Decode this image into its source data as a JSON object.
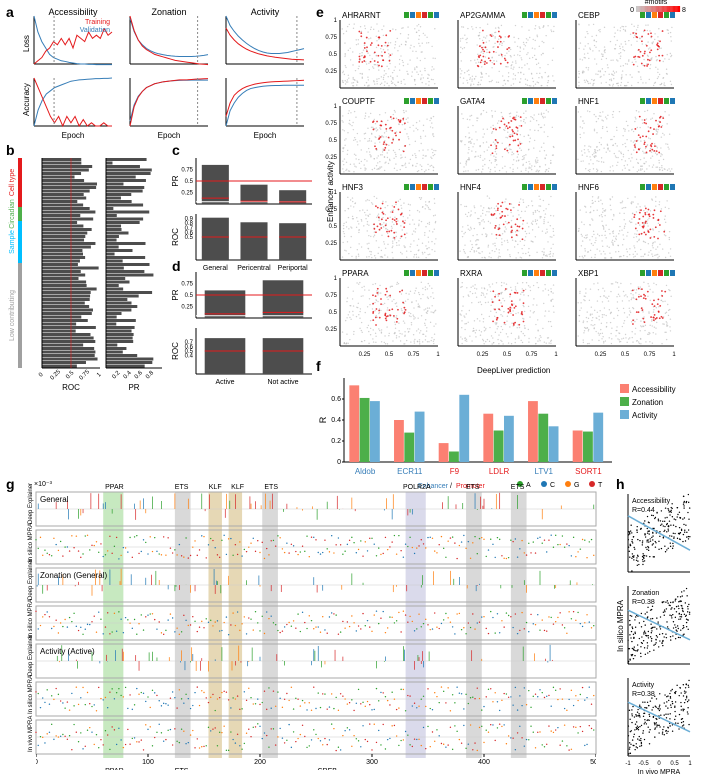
{
  "panel_labels": {
    "a": "a",
    "b": "b",
    "c": "c",
    "d": "d",
    "e": "e",
    "f": "f",
    "g": "g",
    "h": "h"
  },
  "a": {
    "titles": [
      "Accessibility",
      "Zonation",
      "Activity"
    ],
    "legend": {
      "training": "Training",
      "validation": "Validation"
    },
    "training_color": "#e41a1c",
    "validation_color": "#377eb8",
    "y_top": "Loss",
    "y_bot": "Accuracy",
    "x": "Epoch",
    "plots": [
      {
        "loss_epochs": [
          0,
          35
        ],
        "loss_yrange": [
          0.105,
          0.12
        ],
        "vline": 9,
        "loss_train": [
          0.105,
          0.106,
          0.107,
          0.109,
          0.11,
          0.112,
          0.111,
          0.113,
          0.111,
          0.113,
          0.11,
          0.114,
          0.113,
          0.112,
          0.115,
          0.113,
          0.114,
          0.113,
          0.116,
          0.114,
          0.115
        ],
        "loss_val": [
          0.12,
          0.115,
          0.112,
          0.11,
          0.108,
          0.107,
          0.1065,
          0.106,
          0.1058,
          0.1055,
          0.1053,
          0.1051,
          0.105,
          0.105,
          0.1049,
          0.1049,
          0.1048,
          0.1048,
          0.1048,
          0.1048,
          0.1048
        ],
        "acc_yrange": [
          0.9685,
          0.97
        ],
        "acc_vline": 9,
        "acc_train": [
          0.97,
          0.9697,
          0.9694,
          0.9691,
          0.9688,
          0.9686,
          0.9688,
          0.9685,
          0.9688,
          0.9686,
          0.9688,
          0.9685,
          0.9687,
          0.9685,
          0.9686,
          0.9685,
          0.9685,
          0.9686,
          0.9685,
          0.9685
        ],
        "acc_val": [
          0.9685,
          0.969,
          0.9693,
          0.9695,
          0.9696,
          0.9697,
          0.96975,
          0.9698,
          0.96985,
          0.9699,
          0.96992,
          0.96994,
          0.96995,
          0.96996,
          0.96997,
          0.96998,
          0.96998,
          0.96999,
          0.96999,
          0.97
        ]
      },
      {
        "loss_epochs": [
          0,
          75
        ],
        "loss_yrange": [
          0.12,
          0.16
        ],
        "vline": 65,
        "loss_train": [
          0.16,
          0.148,
          0.14,
          0.135,
          0.132,
          0.13,
          0.128,
          0.127,
          0.126,
          0.125,
          0.124,
          0.123,
          0.1225,
          0.122,
          0.1215,
          0.121,
          0.1205,
          0.12,
          0.1198,
          0.1195
        ],
        "loss_val": [
          0.158,
          0.147,
          0.14,
          0.136,
          0.133,
          0.131,
          0.1295,
          0.1285,
          0.1278,
          0.1272,
          0.1268,
          0.1265,
          0.1263,
          0.1262,
          0.1262,
          0.1263,
          0.1265,
          0.1268,
          0.1272,
          0.1278
        ],
        "acc_yrange": [
          0.65,
          0.7
        ],
        "acc_vline": 65,
        "acc_train": [
          0.65,
          0.67,
          0.68,
          0.686,
          0.69,
          0.692,
          0.694,
          0.695,
          0.696,
          0.6965,
          0.697,
          0.6975,
          0.698,
          0.698,
          0.6982,
          0.6985,
          0.6988,
          0.699,
          0.6992,
          0.6993
        ],
        "acc_val": [
          0.655,
          0.672,
          0.681,
          0.686,
          0.69,
          0.692,
          0.694,
          0.695,
          0.696,
          0.6965,
          0.697,
          0.6973,
          0.6975,
          0.6976,
          0.6977,
          0.6978,
          0.6978,
          0.6978,
          0.6978,
          0.6978
        ]
      },
      {
        "loss_epochs": [
          0,
          110
        ],
        "loss_yrange": [
          0.32,
          0.42
        ],
        "vline": 100,
        "loss_train": [
          0.395,
          0.38,
          0.37,
          0.362,
          0.356,
          0.351,
          0.347,
          0.344,
          0.341,
          0.339,
          0.337,
          0.3355,
          0.334,
          0.333,
          0.332,
          0.331,
          0.33,
          0.3295,
          0.329,
          0.3285
        ],
        "loss_val": [
          0.42,
          0.4,
          0.388,
          0.378,
          0.37,
          0.363,
          0.357,
          0.352,
          0.348,
          0.345,
          0.343,
          0.342,
          0.342,
          0.342,
          0.343,
          0.344,
          0.346,
          0.348,
          0.35,
          0.352
        ],
        "acc_yrange": [
          0.5,
          0.75
        ],
        "acc_vline": 100,
        "acc_train": [
          0.55,
          0.62,
          0.66,
          0.68,
          0.695,
          0.705,
          0.712,
          0.718,
          0.722,
          0.725,
          0.728,
          0.73,
          0.731,
          0.732,
          0.733,
          0.734,
          0.735,
          0.736,
          0.737,
          0.738
        ],
        "acc_val": [
          0.5,
          0.58,
          0.62,
          0.65,
          0.67,
          0.685,
          0.695,
          0.7,
          0.704,
          0.707,
          0.709,
          0.71,
          0.711,
          0.711,
          0.712,
          0.712,
          0.712,
          0.712,
          0.712,
          0.712
        ]
      }
    ]
  },
  "b": {
    "ylabels": [
      "Cell type",
      "Circadian",
      "Sample",
      "Low contributing"
    ],
    "xlabel_l": "ROC",
    "xlabel_r": "PR",
    "bar_color": "#4d4d4d",
    "ref_line_color": "#e41a1c",
    "ylabel_colors": [
      "#e41a1c",
      "#4daf4a",
      "#00bfff",
      "#a0a0a0"
    ],
    "n_bars": 60,
    "roc_xticks": [
      0,
      0.25,
      0.5,
      0.75,
      1.0
    ],
    "pr_xticks": [
      0.2,
      0.4,
      0.6,
      0.8
    ]
  },
  "c": {
    "cats": [
      "General",
      "Pericentral",
      "Periportal"
    ],
    "pr": [
      0.85,
      0.42,
      0.3
    ],
    "roc": [
      0.92,
      0.82,
      0.8
    ],
    "bar_color": "#4d4d4d",
    "line_color": "#e41a1c",
    "pr_ticks": [
      0.25,
      0.5,
      0.75
    ],
    "roc_ticks": [
      0.5,
      0.6,
      0.7,
      0.8,
      0.9
    ]
  },
  "d": {
    "cats": [
      "Active",
      "Not active"
    ],
    "pr": [
      0.6,
      0.82
    ],
    "roc": [
      0.78,
      0.78
    ],
    "bar_color": "#4d4d4d",
    "line_color": "#e41a1c",
    "pr_ticks": [
      0.25,
      0.5,
      0.75
    ],
    "roc_ticks": [
      0.4,
      0.5,
      0.6,
      0.7
    ]
  },
  "e": {
    "panels": [
      "AHRARNT",
      "AP2GAMMA",
      "CEBP",
      "COUPTF",
      "GATA4",
      "HNF1",
      "HNF3",
      "HNF4",
      "HNF6",
      "PPARA",
      "RXRA",
      "XBP1"
    ],
    "xlabel": "DeepLiver prediction",
    "ylabel": "Enhancer activity",
    "xticks": [
      0.25,
      0.5,
      0.75,
      1
    ],
    "yticks": [
      0.25,
      0.5,
      0.75,
      1
    ],
    "point_base": "#bdbdbd",
    "point_red": "#e31a1c",
    "legend_label": "#motifs",
    "legend_min": 0,
    "legend_max": 8
  },
  "f": {
    "genes": [
      "Aldob",
      "ECR11",
      "F9",
      "LDLR",
      "LTV1",
      "SORT1"
    ],
    "gene_colors": {
      "enhancer": "#377eb8",
      "promoter": "#e41a1c"
    },
    "gene_types": [
      "enhancer",
      "enhancer",
      "promoter",
      "promoter",
      "enhancer",
      "promoter"
    ],
    "ylabel": "R",
    "series": [
      "Accessibility",
      "Zonation",
      "Activity"
    ],
    "series_colors": [
      "#fb8072",
      "#4daf4a",
      "#6baed6"
    ],
    "data": {
      "Aldob": [
        0.73,
        0.61,
        0.58
      ],
      "ECR11": [
        0.4,
        0.28,
        0.48
      ],
      "F9": [
        0.18,
        0.1,
        0.64
      ],
      "LDLR": [
        0.46,
        0.3,
        0.44
      ],
      "LTV1": [
        0.58,
        0.46,
        0.34
      ],
      "SORT1": [
        0.3,
        0.29,
        0.47
      ]
    },
    "yticks": [
      0,
      0.2,
      0.4,
      0.6
    ],
    "nt_colors": {
      "A": "#2ca02c",
      "C": "#1f77b4",
      "G": "#ff7f0e",
      "T": "#d62728"
    },
    "nt_legend": [
      "A",
      "C",
      "G",
      "T"
    ],
    "enh_prom_label": "Enhancer/Promoter"
  },
  "g": {
    "tracks": [
      "General",
      "Zonation (General)",
      "Activity (Active)"
    ],
    "row_labels": [
      "Deep Explainer",
      "In silico MPRA"
    ],
    "bottom": "In vivo MPRA",
    "top_annot": [
      "PPAR",
      "ETS",
      "KLF",
      "KLF",
      "ETS",
      "POLR2A",
      "ETS",
      "ETS"
    ],
    "bot_annot": [
      "PPAR",
      "ETS",
      "CREB"
    ],
    "annot_colors": {
      "PPAR": "#c7e9c0",
      "ETS": "#d9d9d9",
      "KLF": "#e6d8b5",
      "POLR2A": "#dadaeb",
      "CREB": "#e6d8b5"
    },
    "x_range": [
      0,
      500
    ],
    "de_yrange": "×10⁻³",
    "is_ticks": [
      [
        -60,
        60
      ],
      [
        -75,
        75
      ],
      [
        -150,
        150
      ],
      [
        -1500,
        1500
      ]
    ]
  },
  "h": {
    "panels": [
      "Accessibility",
      "Zonation",
      "Activity"
    ],
    "R": [
      0.44,
      0.38,
      0.38
    ],
    "xlabel": "In vivo MPRA",
    "ylabel": "In silico MPRA",
    "xticks": [
      -1.0,
      -0.5,
      0.0,
      0.5,
      1.0
    ],
    "yticks": [
      [
        -1.0,
        -0.5,
        0.0,
        0.5
      ],
      [
        -1.0,
        0.0,
        1.0
      ],
      [
        -1.0,
        -0.5,
        0.0
      ]
    ],
    "line_color": "#6baed6",
    "point_color": "#000000"
  }
}
